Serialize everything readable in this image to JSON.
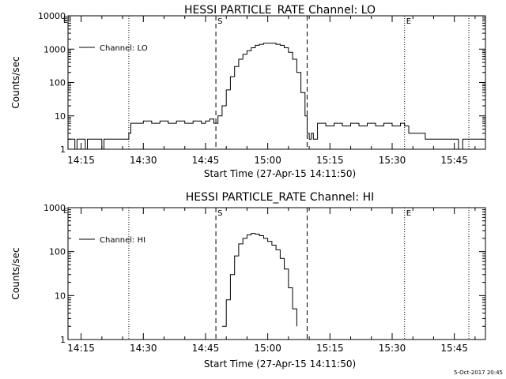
{
  "footer_stamp": "5-Oct-2017 20:45",
  "chart_data": [
    {
      "type": "line",
      "title": "HESSI PARTICLE_RATE Channel: LO",
      "xlabel": "Start Time (27-Apr-15 14:11:50)",
      "ylabel": "Counts/sec",
      "yscale": "log",
      "ylim": [
        1,
        10000
      ],
      "yticks": [
        1,
        10,
        100,
        1000,
        10000
      ],
      "ytick_labels": [
        "1",
        "10",
        "100",
        "1000",
        "10000"
      ],
      "xlim": [
        "14:11:50",
        "15:52:30"
      ],
      "xticks": [
        "14:15",
        "14:30",
        "14:45",
        "15:00",
        "15:15",
        "15:30",
        "15:45"
      ],
      "legend": {
        "position": "top-left",
        "entries": [
          "Channel: LO"
        ]
      },
      "markers": [
        {
          "label": "",
          "time": "14:26:30",
          "style": "dotted"
        },
        {
          "label": "S",
          "time": "14:47:30",
          "style": "dashed"
        },
        {
          "label": "",
          "time": "15:09:30",
          "style": "dashed"
        },
        {
          "label": "E",
          "time": "15:33:00",
          "style": "dotted"
        },
        {
          "label": "",
          "time": "15:48:30",
          "style": "dotted"
        }
      ],
      "corner_marks": [
        "E",
        "E"
      ],
      "series": [
        {
          "name": "Channel: LO",
          "x": [
            "14:11:50",
            "14:13:00",
            "14:13:30",
            "14:14:00",
            "14:15:00",
            "14:16:00",
            "14:16:30",
            "14:17:00",
            "14:18:00",
            "14:19:00",
            "14:20:00",
            "14:20:30",
            "14:21:00",
            "14:22:00",
            "14:23:00",
            "14:24:00",
            "14:25:00",
            "14:26:00",
            "14:26:30",
            "14:27:00",
            "14:28:00",
            "14:30:00",
            "14:32:00",
            "14:34:00",
            "14:36:00",
            "14:38:00",
            "14:40:00",
            "14:42:00",
            "14:44:00",
            "14:45:00",
            "14:46:00",
            "14:47:00",
            "14:48:00",
            "14:49:00",
            "14:50:00",
            "14:51:00",
            "14:52:00",
            "14:53:00",
            "14:54:00",
            "14:55:00",
            "14:56:00",
            "14:57:00",
            "14:58:00",
            "14:59:00",
            "15:00:00",
            "15:01:00",
            "15:02:00",
            "15:03:00",
            "15:04:00",
            "15:05:00",
            "15:06:00",
            "15:07:00",
            "15:08:00",
            "15:09:00",
            "15:09:30",
            "15:10:00",
            "15:10:30",
            "15:11:00",
            "15:12:00",
            "15:14:00",
            "15:16:00",
            "15:18:00",
            "15:20:00",
            "15:22:00",
            "15:24:00",
            "15:26:00",
            "15:28:00",
            "15:30:00",
            "15:32:00",
            "15:33:00",
            "15:34:00",
            "15:36:00",
            "15:38:00",
            "15:40:00",
            "15:42:00",
            "15:44:00",
            "15:45:00",
            "15:46:00",
            "15:47:00",
            "15:48:00",
            "15:50:00",
            "15:52:00"
          ],
          "y": [
            2,
            2,
            1,
            2,
            2,
            1,
            2,
            2,
            2,
            2,
            1,
            2,
            2,
            2,
            2,
            2,
            2,
            2,
            3,
            6,
            6,
            7,
            6,
            7,
            6,
            7,
            6,
            7,
            6,
            7,
            8,
            6,
            10,
            20,
            60,
            150,
            300,
            500,
            700,
            900,
            1100,
            1300,
            1400,
            1500,
            1500,
            1500,
            1400,
            1300,
            1100,
            800,
            500,
            200,
            50,
            10,
            3,
            2,
            3,
            2,
            6,
            5,
            6,
            5,
            6,
            5,
            6,
            5,
            6,
            5,
            6,
            5,
            3,
            3,
            2,
            2,
            2,
            2,
            2,
            1,
            2,
            2,
            2,
            2
          ]
        }
      ]
    },
    {
      "type": "line",
      "title": "HESSI PARTICLE_RATE Channel: HI",
      "xlabel": "Start Time (27-Apr-15 14:11:50)",
      "ylabel": "Counts/sec",
      "yscale": "log",
      "ylim": [
        1,
        1000
      ],
      "yticks": [
        1,
        10,
        100,
        1000
      ],
      "ytick_labels": [
        "1",
        "10",
        "100",
        "1000"
      ],
      "xlim": [
        "14:11:50",
        "15:52:30"
      ],
      "xticks": [
        "14:15",
        "14:30",
        "14:45",
        "15:00",
        "15:15",
        "15:30",
        "15:45"
      ],
      "legend": {
        "position": "top-left",
        "entries": [
          "Channel: HI"
        ]
      },
      "markers": [
        {
          "label": "",
          "time": "14:26:30",
          "style": "dotted"
        },
        {
          "label": "S",
          "time": "14:47:30",
          "style": "dashed"
        },
        {
          "label": "",
          "time": "15:09:30",
          "style": "dashed"
        },
        {
          "label": "E",
          "time": "15:33:00",
          "style": "dotted"
        },
        {
          "label": "",
          "time": "15:48:30",
          "style": "dotted"
        }
      ],
      "corner_marks": [
        "E"
      ],
      "series": [
        {
          "name": "Channel: HI",
          "x": [
            "14:49:00",
            "14:50:00",
            "14:51:00",
            "14:52:00",
            "14:53:00",
            "14:54:00",
            "14:55:00",
            "14:56:00",
            "14:57:00",
            "14:58:00",
            "14:59:00",
            "15:00:00",
            "15:01:00",
            "15:02:00",
            "15:03:00",
            "15:04:00",
            "15:05:00",
            "15:06:00",
            "15:07:00"
          ],
          "y": [
            2,
            8,
            30,
            80,
            150,
            200,
            240,
            260,
            250,
            230,
            200,
            170,
            140,
            110,
            70,
            40,
            15,
            5,
            2
          ]
        }
      ]
    }
  ]
}
